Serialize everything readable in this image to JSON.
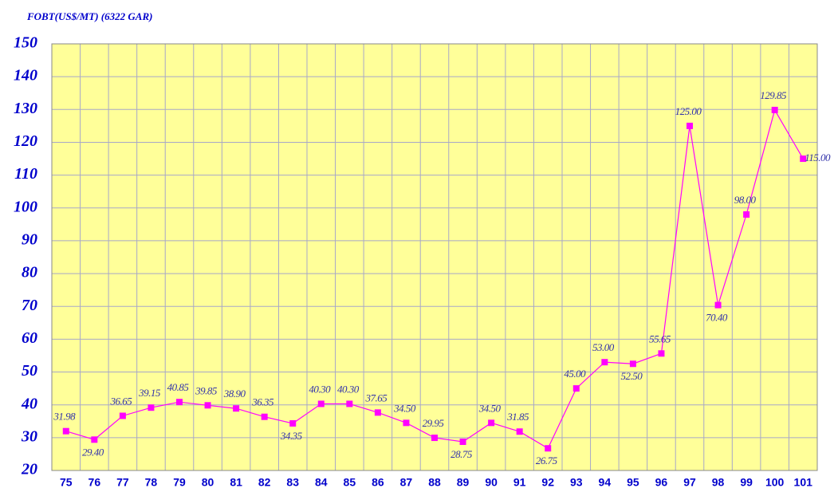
{
  "chart_data": {
    "type": "line",
    "title": "FOBT(US$/MT) (6322 GAR)",
    "categories": [
      "75",
      "76",
      "77",
      "78",
      "79",
      "80",
      "81",
      "82",
      "83",
      "84",
      "85",
      "86",
      "87",
      "88",
      "89",
      "90",
      "91",
      "92",
      "93",
      "94",
      "95",
      "96",
      "97",
      "98",
      "99",
      "100",
      "101"
    ],
    "values": [
      31.98,
      29.4,
      36.65,
      39.15,
      40.85,
      39.85,
      38.9,
      36.35,
      34.35,
      40.3,
      40.3,
      37.65,
      34.5,
      29.95,
      28.75,
      34.5,
      31.85,
      26.75,
      45,
      53,
      52.5,
      55.65,
      125,
      70.4,
      98,
      129.85,
      115
    ],
    "value_labels": [
      "31.98",
      "29.40",
      "36.65",
      "39.15",
      "40.85",
      "39.85",
      "38.90",
      "36.35",
      "34.35",
      "40.30",
      "40.30",
      "37.65",
      "34.50",
      "29.95",
      "28.75",
      "34.50",
      "31.85",
      "26.75",
      "45.00",
      "53.00",
      "52.50",
      "55.65",
      "125.00",
      "70.40",
      "98.00",
      "129.85",
      "115.00"
    ],
    "color": "#ff00ff",
    "ylim": [
      20,
      150
    ],
    "yticks": [
      20,
      30,
      40,
      50,
      60,
      70,
      80,
      90,
      100,
      110,
      120,
      130,
      140,
      150
    ],
    "grid": true
  }
}
